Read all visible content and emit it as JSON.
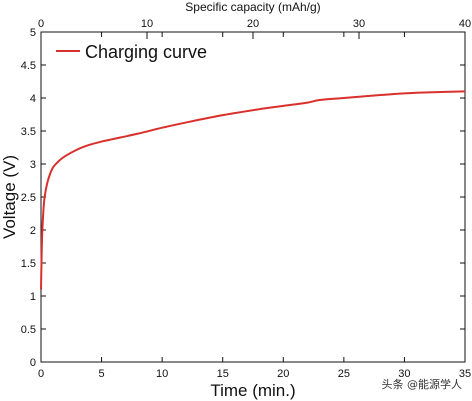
{
  "chart_data": {
    "type": "line",
    "x_bottom": {
      "label": "Time (min.)",
      "range": [
        0,
        35
      ],
      "ticks": [
        "0",
        "5",
        "10",
        "15",
        "20",
        "25",
        "30",
        "35"
      ]
    },
    "x_top": {
      "label": "Specific capacity (mAh/g)",
      "range": [
        0,
        40
      ],
      "ticks": [
        "0",
        "10",
        "20",
        "30",
        "40"
      ]
    },
    "y": {
      "label": "Voltage (V)",
      "range": [
        0,
        5
      ],
      "ticks": [
        "0",
        "0.5",
        "1",
        "1.5",
        "2",
        "2.5",
        "3",
        "3.5",
        "4",
        "4.5",
        "5"
      ]
    },
    "series": [
      {
        "name": "Charging curve",
        "color": "#d9302c",
        "x": [
          0,
          0.05,
          0.1,
          0.2,
          0.3,
          0.5,
          0.75,
          1.0,
          1.5,
          2,
          3,
          4,
          5,
          6,
          8,
          10,
          12,
          15,
          18,
          20,
          22,
          23,
          25,
          27,
          30,
          33,
          35
        ],
        "y": [
          1.1,
          1.6,
          1.95,
          2.3,
          2.5,
          2.7,
          2.85,
          2.95,
          3.05,
          3.12,
          3.22,
          3.29,
          3.34,
          3.38,
          3.46,
          3.55,
          3.63,
          3.74,
          3.83,
          3.88,
          3.93,
          3.97,
          4.0,
          4.03,
          4.07,
          4.09,
          4.1
        ]
      }
    ],
    "legend": {
      "position": "top-left"
    },
    "grid": false
  },
  "watermark": "头条 @能源学人"
}
